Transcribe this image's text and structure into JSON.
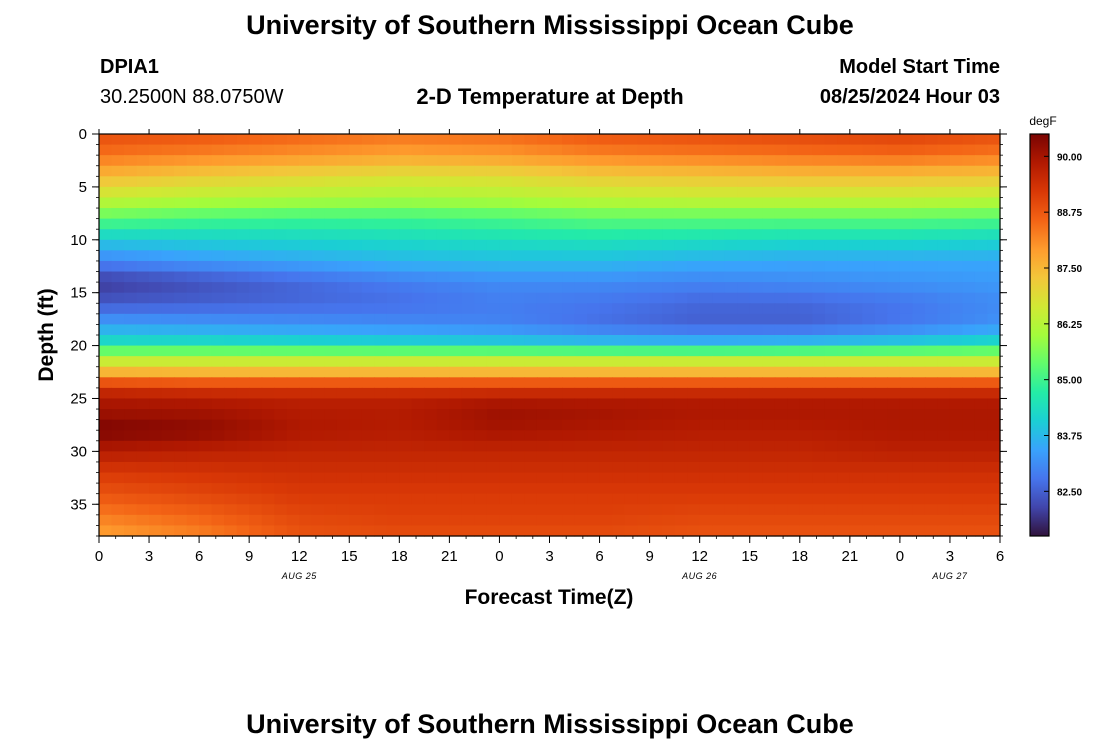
{
  "page": {
    "title_top": "University of Southern Mississippi Ocean Cube",
    "title_bottom": "University of Southern Mississippi Ocean Cube",
    "station_id": "DPIA1",
    "station_coords": "30.2500N  88.0750W",
    "chart_heading": "2-D Temperature at Depth",
    "model_label": "Model Start Time",
    "model_time": "08/25/2024 Hour 03"
  },
  "chart_data": {
    "type": "heatmap",
    "title": "2-D Temperature at Depth",
    "xlabel": "Forecast Time(Z)",
    "ylabel": "Depth (ft)",
    "x_hours_range": [
      0,
      54
    ],
    "y_range": [
      0,
      38
    ],
    "y_inverted": true,
    "x_tick_labels": [
      "0",
      "3",
      "6",
      "9",
      "12",
      "15",
      "18",
      "21",
      "0",
      "3",
      "6",
      "9",
      "12",
      "15",
      "18",
      "21",
      "0",
      "3",
      "6"
    ],
    "y_tick_labels": [
      "0",
      "5",
      "10",
      "15",
      "20",
      "25",
      "30",
      "35"
    ],
    "y_ticks": [
      0,
      5,
      10,
      15,
      20,
      25,
      30,
      35
    ],
    "date_labels": [
      {
        "text": "AUG 25",
        "hour": 12
      },
      {
        "text": "AUG 26",
        "hour": 36
      },
      {
        "text": "AUG 27",
        "hour": 51
      }
    ],
    "colorbar": {
      "unit": "degF",
      "min": 81.5,
      "max": 90.5,
      "tick_values": [
        90.0,
        88.75,
        87.5,
        86.25,
        85.0,
        83.75,
        82.5
      ],
      "tick_labels": [
        "90.00",
        "88.75",
        "87.50",
        "86.25",
        "85.00",
        "83.75",
        "82.50"
      ]
    },
    "series": [
      {
        "depth": 0,
        "temps": [
          88.9,
          88.8,
          88.6,
          88.4,
          88.5,
          88.8,
          88.9,
          89.0,
          89.1,
          88.9
        ]
      },
      {
        "depth": 2,
        "temps": [
          88.4,
          88.2,
          88.0,
          87.8,
          87.9,
          88.2,
          88.3,
          88.4,
          88.5,
          88.3
        ]
      },
      {
        "depth": 4,
        "temps": [
          87.5,
          87.2,
          87.0,
          86.8,
          86.9,
          87.2,
          87.3,
          87.4,
          87.4,
          87.3
        ]
      },
      {
        "depth": 6,
        "temps": [
          86.5,
          86.3,
          86.2,
          86.1,
          86.2,
          86.4,
          86.5,
          86.5,
          86.5,
          86.4
        ]
      },
      {
        "depth": 8,
        "temps": [
          85.3,
          85.1,
          85.0,
          85.0,
          85.1,
          85.3,
          85.3,
          85.3,
          85.3,
          85.2
        ]
      },
      {
        "depth": 10,
        "temps": [
          84.0,
          84.1,
          84.2,
          84.3,
          84.4,
          84.5,
          84.4,
          84.3,
          84.3,
          84.2
        ]
      },
      {
        "depth": 12,
        "temps": [
          83.0,
          83.3,
          83.5,
          83.7,
          83.8,
          83.8,
          83.6,
          83.5,
          83.5,
          83.5
        ]
      },
      {
        "depth": 14,
        "temps": [
          82.0,
          82.3,
          82.6,
          82.9,
          83.1,
          83.1,
          83.0,
          83.1,
          83.2,
          83.3
        ]
      },
      {
        "depth": 16,
        "temps": [
          82.4,
          82.5,
          82.6,
          82.7,
          82.9,
          82.8,
          82.6,
          82.6,
          82.8,
          83.1
        ]
      },
      {
        "depth": 18,
        "temps": [
          83.4,
          83.3,
          83.2,
          83.1,
          83.0,
          82.7,
          82.5,
          82.5,
          82.8,
          83.2
        ]
      },
      {
        "depth": 20,
        "temps": [
          84.5,
          84.5,
          84.4,
          84.3,
          84.2,
          84.0,
          83.9,
          84.0,
          84.2,
          84.5
        ]
      },
      {
        "depth": 21,
        "temps": [
          86.3,
          86.3,
          86.3,
          86.3,
          86.3,
          86.3,
          86.3,
          86.3,
          86.3,
          86.3
        ]
      },
      {
        "depth": 22,
        "temps": [
          86.8,
          86.8,
          86.8,
          86.8,
          86.8,
          86.8,
          86.8,
          86.8,
          86.8,
          86.8
        ]
      },
      {
        "depth": 23,
        "temps": [
          88.3,
          88.2,
          88.2,
          88.2,
          88.2,
          88.2,
          88.2,
          88.2,
          88.2,
          88.2
        ]
      },
      {
        "depth": 24,
        "temps": [
          89.3,
          89.2,
          89.2,
          89.2,
          89.2,
          89.2,
          89.2,
          89.2,
          89.2,
          89.2
        ]
      },
      {
        "depth": 25,
        "temps": [
          89.9,
          89.8,
          89.7,
          89.7,
          89.8,
          89.8,
          89.8,
          89.8,
          89.8,
          89.8
        ]
      },
      {
        "depth": 26,
        "temps": [
          90.0,
          90.0,
          89.8,
          89.8,
          90.1,
          90.0,
          89.9,
          89.9,
          89.9,
          89.9
        ]
      },
      {
        "depth": 28,
        "temps": [
          90.5,
          90.3,
          89.9,
          89.8,
          90.0,
          89.9,
          89.8,
          89.8,
          89.9,
          89.9
        ]
      },
      {
        "depth": 30,
        "temps": [
          89.8,
          89.7,
          89.6,
          89.6,
          89.6,
          89.6,
          89.6,
          89.6,
          89.7,
          89.7
        ]
      },
      {
        "depth": 32,
        "temps": [
          89.2,
          89.3,
          89.4,
          89.4,
          89.4,
          89.4,
          89.4,
          89.4,
          89.4,
          89.4
        ]
      },
      {
        "depth": 34,
        "temps": [
          88.8,
          89.0,
          89.2,
          89.2,
          89.2,
          89.2,
          89.2,
          89.2,
          89.2,
          89.2
        ]
      },
      {
        "depth": 36,
        "temps": [
          88.3,
          88.6,
          89.0,
          89.1,
          89.1,
          89.1,
          89.0,
          89.0,
          89.0,
          89.0
        ]
      },
      {
        "depth": 38,
        "temps": [
          87.8,
          88.2,
          88.8,
          88.9,
          88.9,
          88.9,
          88.8,
          88.8,
          88.8,
          88.8
        ]
      }
    ],
    "series_hours": [
      0,
      6,
      12,
      18,
      24,
      30,
      36,
      42,
      48,
      54
    ],
    "colormap": [
      "#30123b",
      "#4145ab",
      "#4675ed",
      "#39a2fc",
      "#1bcfd4",
      "#24eca6",
      "#61fc6c",
      "#a4fc3b",
      "#d1e834",
      "#f3c63a",
      "#fe9b2d",
      "#f36315",
      "#d93806",
      "#b11901",
      "#7a0402"
    ]
  }
}
